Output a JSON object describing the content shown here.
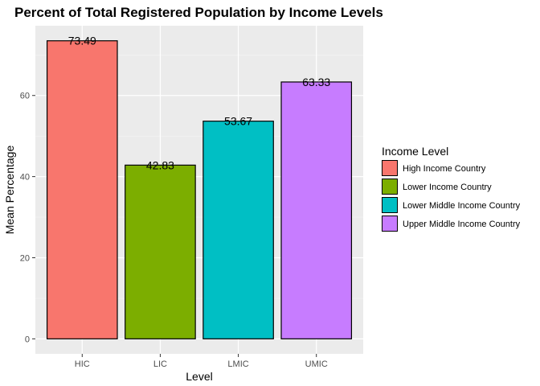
{
  "chart_data": {
    "type": "bar",
    "title": "Percent of Total Registered Population by Income Levels",
    "xlabel": "Level",
    "ylabel": "Mean Percentage",
    "categories": [
      "HIC",
      "LIC",
      "LMIC",
      "UMIC"
    ],
    "values": [
      73.49,
      42.83,
      53.67,
      63.33
    ],
    "data_labels": [
      "73.49",
      "42.83",
      "53.67",
      "63.33"
    ],
    "colors": [
      "#F8766D",
      "#7CAE00",
      "#00BFC4",
      "#C77CFF"
    ],
    "ylim": [
      -3.7,
      77.2
    ],
    "yticks": [
      0,
      20,
      40,
      60
    ],
    "grid": true,
    "legend": {
      "title": "Income Level",
      "position": "right",
      "entries": [
        "High Income Country",
        "Lower Income Country",
        "Lower Middle Income Country",
        "Upper Middle Income Country"
      ]
    }
  },
  "colors": {
    "panel_background": "#EBEBEB",
    "grid_major": "#FFFFFF",
    "bar_outline": "#000000"
  }
}
